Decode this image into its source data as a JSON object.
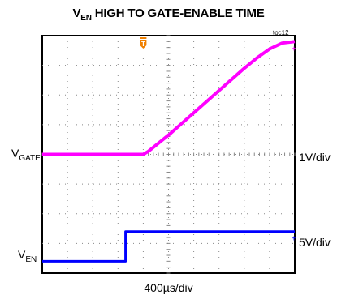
{
  "title_main": "HIGH TO GATE-ENABLE TIME",
  "title_prefix": "V",
  "title_prefix_sub": "EN",
  "toc_id": "toc12",
  "chart_data": {
    "type": "line",
    "x_divisions": 10,
    "y_divisions": 8,
    "xlabel": "400µs/div",
    "grid": true,
    "series": [
      {
        "name": "VGATE",
        "label_main": "V",
        "label_sub": "GATE",
        "scale": "1V/div",
        "color": "#ff00ff",
        "x": [
          0,
          4.0,
          4.2,
          5.0,
          6.0,
          7.0,
          8.0,
          8.5,
          9.0,
          9.5,
          10.0
        ],
        "y": [
          4.0,
          4.0,
          4.1,
          4.65,
          5.4,
          6.15,
          6.9,
          7.25,
          7.55,
          7.75,
          7.8
        ]
      },
      {
        "name": "VEN",
        "label_main": "V",
        "label_sub": "EN",
        "scale": "5V/div",
        "color": "#0000ff",
        "x": [
          0,
          3.3,
          3.3,
          10.0
        ],
        "y": [
          0.4,
          0.4,
          1.4,
          1.4
        ]
      }
    ]
  },
  "marker_color": "#f08000"
}
